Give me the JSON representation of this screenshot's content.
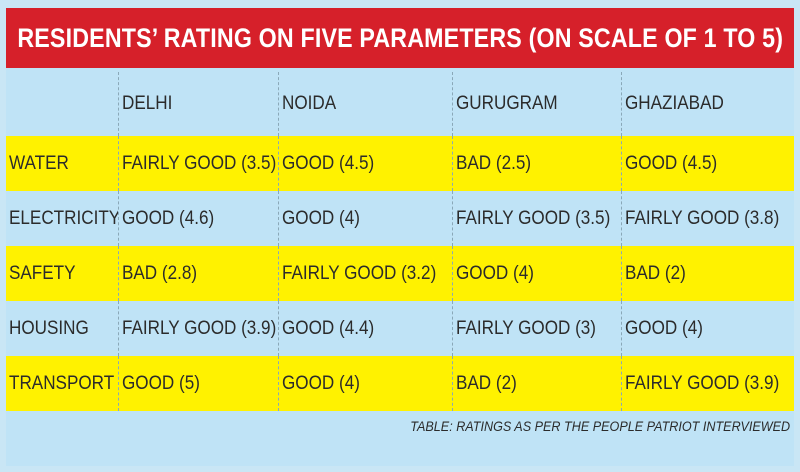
{
  "chart_data": {
    "type": "table",
    "title": "RESIDENTS’ RATING ON FIVE PARAMETERS (ON SCALE OF 1 TO 5)",
    "columns": [
      "",
      "DELHI",
      "NOIDA",
      "GURUGRAM",
      "GHAZIABAD"
    ],
    "rows": [
      [
        "WATER",
        "FAIRLY GOOD (3.5)",
        "GOOD (4.5)",
        "BAD (2.5)",
        "GOOD (4.5)"
      ],
      [
        "ELECTRICITY",
        "GOOD (4.6)",
        "GOOD (4)",
        "FAIRLY GOOD (3.5)",
        "FAIRLY GOOD (3.8)"
      ],
      [
        "SAFETY",
        "BAD (2.8)",
        "FAIRLY GOOD (3.2)",
        "GOOD (4)",
        "BAD (2)"
      ],
      [
        "HOUSING",
        "FAIRLY GOOD (3.9)",
        "GOOD (4.4)",
        "FAIRLY GOOD (3)",
        "GOOD (4)"
      ],
      [
        "TRANSPORT",
        "GOOD (5)",
        "GOOD (4)",
        "BAD (2)",
        "FAIRLY GOOD (3.9)"
      ]
    ],
    "footnote": "TABLE: RATINGS AS PER THE PEOPLE PATRIOT INTERVIEWED",
    "colors": {
      "title_background": "#d6202a",
      "title_text": "#ffffff",
      "row_highlight": "#fff200",
      "row_plain": "#bfe3f6"
    }
  }
}
